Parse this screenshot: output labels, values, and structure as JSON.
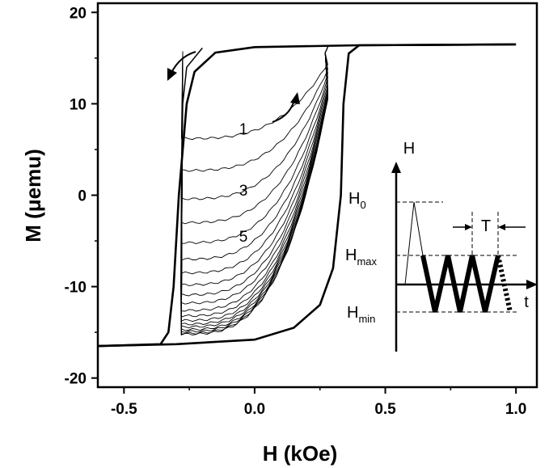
{
  "chart_data": {
    "type": "line",
    "title": "",
    "xlabel": "H (kOe)",
    "ylabel": "M (μemu)",
    "xlim": [
      -0.6,
      1.08
    ],
    "ylim": [
      -21,
      21
    ],
    "x_ticks": [
      -0.5,
      0.0,
      0.5,
      1.0
    ],
    "x_tick_labels": [
      "-0.5",
      "0.0",
      "0.5",
      "1.0"
    ],
    "y_ticks": [
      -20,
      -10,
      0,
      10,
      20
    ],
    "y_tick_labels": [
      "-20",
      "-10",
      "0",
      "10",
      "20"
    ],
    "grid": false,
    "legend": "none",
    "major_loop": {
      "upper_branch": [
        [
          1.0,
          16.5
        ],
        [
          0.4,
          16.4
        ],
        [
          0.0,
          16.2
        ],
        [
          -0.15,
          15.6
        ],
        [
          -0.23,
          13.5
        ],
        [
          -0.26,
          10.0
        ],
        [
          -0.29,
          0.0
        ],
        [
          -0.31,
          -10.0
        ],
        [
          -0.33,
          -15.0
        ],
        [
          -0.36,
          -16.3
        ],
        [
          -0.6,
          -16.5
        ]
      ],
      "lower_branch": [
        [
          -0.6,
          -16.5
        ],
        [
          -0.3,
          -16.3
        ],
        [
          0.0,
          -15.8
        ],
        [
          0.15,
          -14.5
        ],
        [
          0.25,
          -12.0
        ],
        [
          0.3,
          -8.0
        ],
        [
          0.33,
          0.0
        ],
        [
          0.34,
          10.0
        ],
        [
          0.36,
          15.5
        ],
        [
          0.4,
          16.4
        ],
        [
          1.0,
          16.5
        ]
      ]
    },
    "minor_loops": {
      "x_min": -0.28,
      "x_max": 0.28,
      "m_top": 16.2,
      "start_levels": [
        6.2,
        2.7,
        -0.4,
        -3.0,
        -5.2,
        -7.0,
        -8.5,
        -9.8,
        -10.9,
        -11.8,
        -12.6,
        -13.2,
        -13.7,
        -14.1,
        -14.4,
        -14.7,
        -14.9,
        -15.1,
        -15.2
      ]
    },
    "annotations": [
      {
        "text": "1",
        "x": -0.01,
        "y": 7.3
      },
      {
        "text": "3",
        "x": -0.01,
        "y": 0.6
      },
      {
        "text": "5",
        "x": -0.01,
        "y": -4.4
      }
    ],
    "inset": {
      "axis_y_label": "H",
      "axis_x_label": "t",
      "h0_label": "H",
      "h0_sub": "0",
      "hmax_label": "H",
      "hmax_sub": "max",
      "hmin_label": "H",
      "hmin_sub": "min",
      "period_label": "T"
    }
  }
}
